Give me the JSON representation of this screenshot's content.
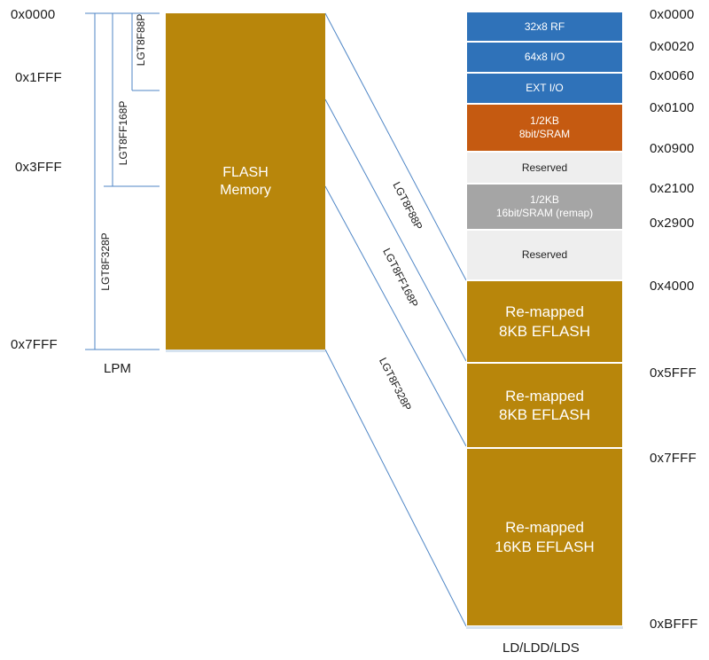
{
  "lpm": {
    "addresses": [
      "0x0000",
      "0x1FFF",
      "0x3FFF",
      "0x7FFF"
    ],
    "flash_label": [
      "FLASH",
      "Memory"
    ],
    "footer": "LPM",
    "bracket_labels": [
      "LGT8F88P",
      "LGT8FF168P",
      "LGT8F328P"
    ]
  },
  "ld": {
    "blocks": [
      {
        "lines": [
          "32x8 RF"
        ]
      },
      {
        "lines": [
          "64x8 I/O"
        ]
      },
      {
        "lines": [
          "EXT I/O"
        ]
      },
      {
        "lines": [
          "1/2KB",
          "8bit/SRAM"
        ]
      },
      {
        "lines": [
          "Reserved"
        ]
      },
      {
        "lines": [
          "1/2KB",
          "16bit/SRAM (remap)"
        ]
      },
      {
        "lines": [
          "Reserved"
        ]
      },
      {
        "lines": [
          "Re-mapped",
          "8KB EFLASH"
        ]
      },
      {
        "lines": [
          "Re-mapped",
          "8KB EFLASH"
        ]
      },
      {
        "lines": [
          "Re-mapped",
          "16KB EFLASH"
        ]
      }
    ],
    "addresses": [
      "0x0000",
      "0x0020",
      "0x0060",
      "0x0100",
      "0x0900",
      "0x2100",
      "0x2900",
      "0x4000",
      "0x5FFF",
      "0x7FFF",
      "0xBFFF"
    ],
    "footer": "LD/LDD/LDS"
  },
  "mapping_labels": [
    "LGT8F88P",
    "LGT8FF168P",
    "LGT8F328P"
  ],
  "colors": {
    "blue": "#2f72b9",
    "orange": "#c55a11",
    "gold": "#b8860b",
    "light_gray": "#eeeeee",
    "mid_gray": "#a5a5a5",
    "line": "#4f86c6"
  }
}
